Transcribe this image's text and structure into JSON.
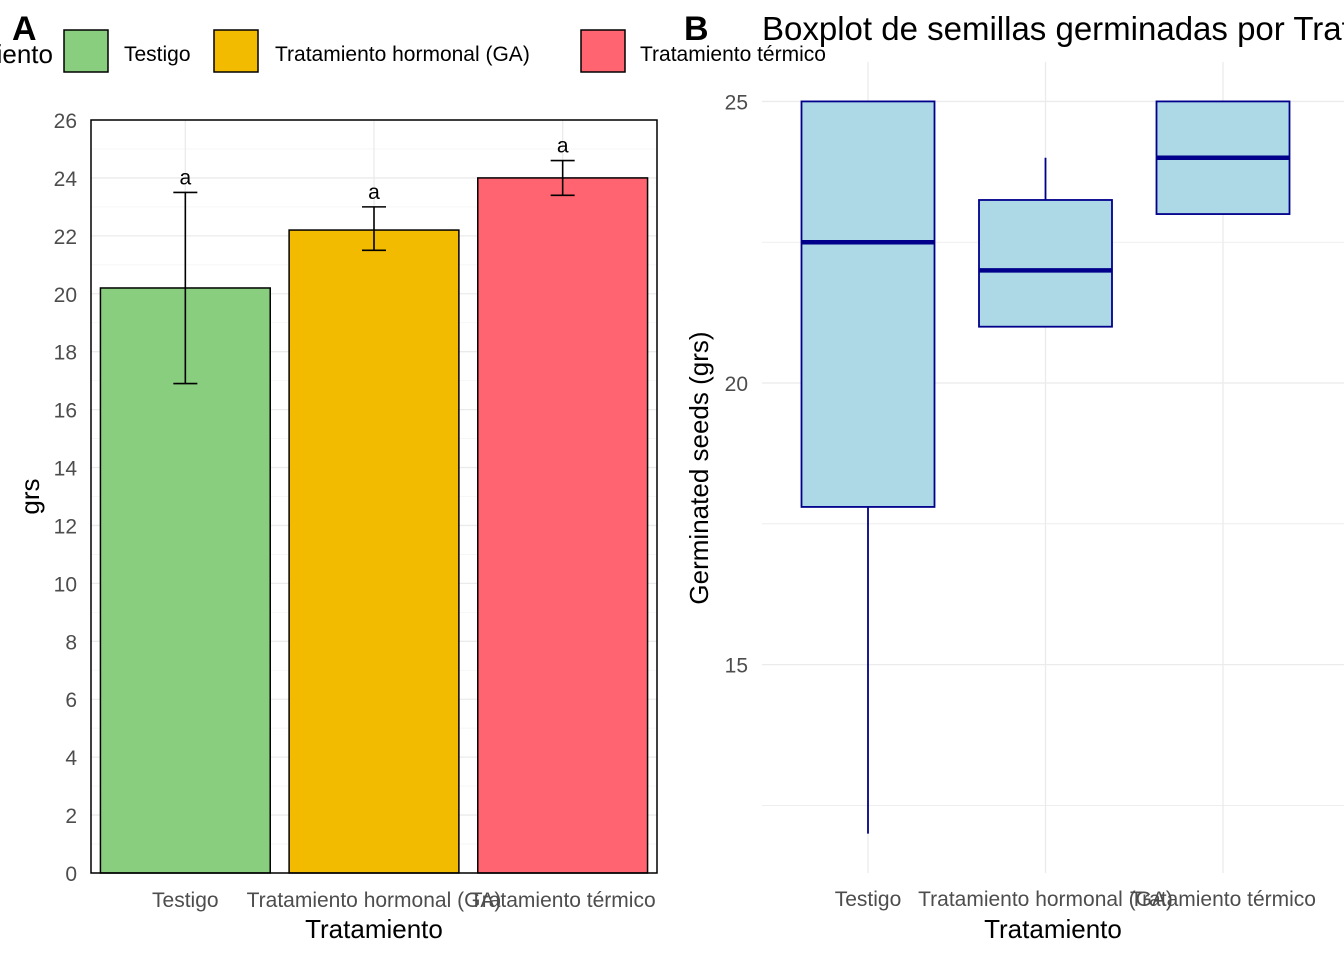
{
  "panels": {
    "a": {
      "tag": "A"
    },
    "b": {
      "tag": "B"
    }
  },
  "legend": {
    "title": "Tratamiento",
    "items": [
      {
        "label": "Testigo",
        "color": "#88CE7E"
      },
      {
        "label": "Tratamiento hormonal (GA)",
        "color": "#F2BB00"
      },
      {
        "label": "Tratamiento térmico",
        "color": "#FF6470"
      }
    ]
  },
  "chart_data": [
    {
      "type": "bar",
      "panel": "A",
      "title": "",
      "xlabel": "Tratamiento",
      "ylabel": "grs",
      "categories": [
        "Testigo",
        "Tratamiento hormonal (GA)",
        "Tratamiento térmico"
      ],
      "values": [
        20.2,
        22.2,
        24.0
      ],
      "error_low": [
        16.9,
        21.5,
        23.4
      ],
      "error_high": [
        23.5,
        23.0,
        24.6
      ],
      "significance_labels": [
        "a",
        "a",
        "a"
      ],
      "colors": [
        "#88CE7E",
        "#F2BB00",
        "#FF6470"
      ],
      "ylim": [
        0,
        26
      ],
      "yticks": [
        "0",
        "2",
        "4",
        "6",
        "8",
        "10",
        "12",
        "14",
        "16",
        "18",
        "20",
        "22",
        "24",
        "26"
      ],
      "grid": true,
      "legend_position": "top"
    },
    {
      "type": "boxplot",
      "panel": "B",
      "title": "Boxplot de semillas germinadas por Tratamiento",
      "xlabel": "Tratamiento",
      "ylabel": "Germinated seeds (grs)",
      "categories": [
        "Testigo",
        "Tratamiento hormonal (GA)",
        "Tratamiento térmico"
      ],
      "boxes": [
        {
          "min": 12.0,
          "q1": 17.8,
          "median": 22.5,
          "q3": 25.0,
          "max": 25.0
        },
        {
          "min": 21.0,
          "q1": 21.0,
          "median": 22.0,
          "q3": 23.25,
          "max": 24.0
        },
        {
          "min": 23.0,
          "q1": 23.0,
          "median": 24.0,
          "q3": 25.0,
          "max": 25.0
        }
      ],
      "box_fill": "#ADD8E6",
      "box_stroke": "#00008B",
      "ylim": [
        11.3,
        25.7
      ],
      "yticks": [
        "15",
        "20",
        "25"
      ],
      "grid": true
    }
  ]
}
